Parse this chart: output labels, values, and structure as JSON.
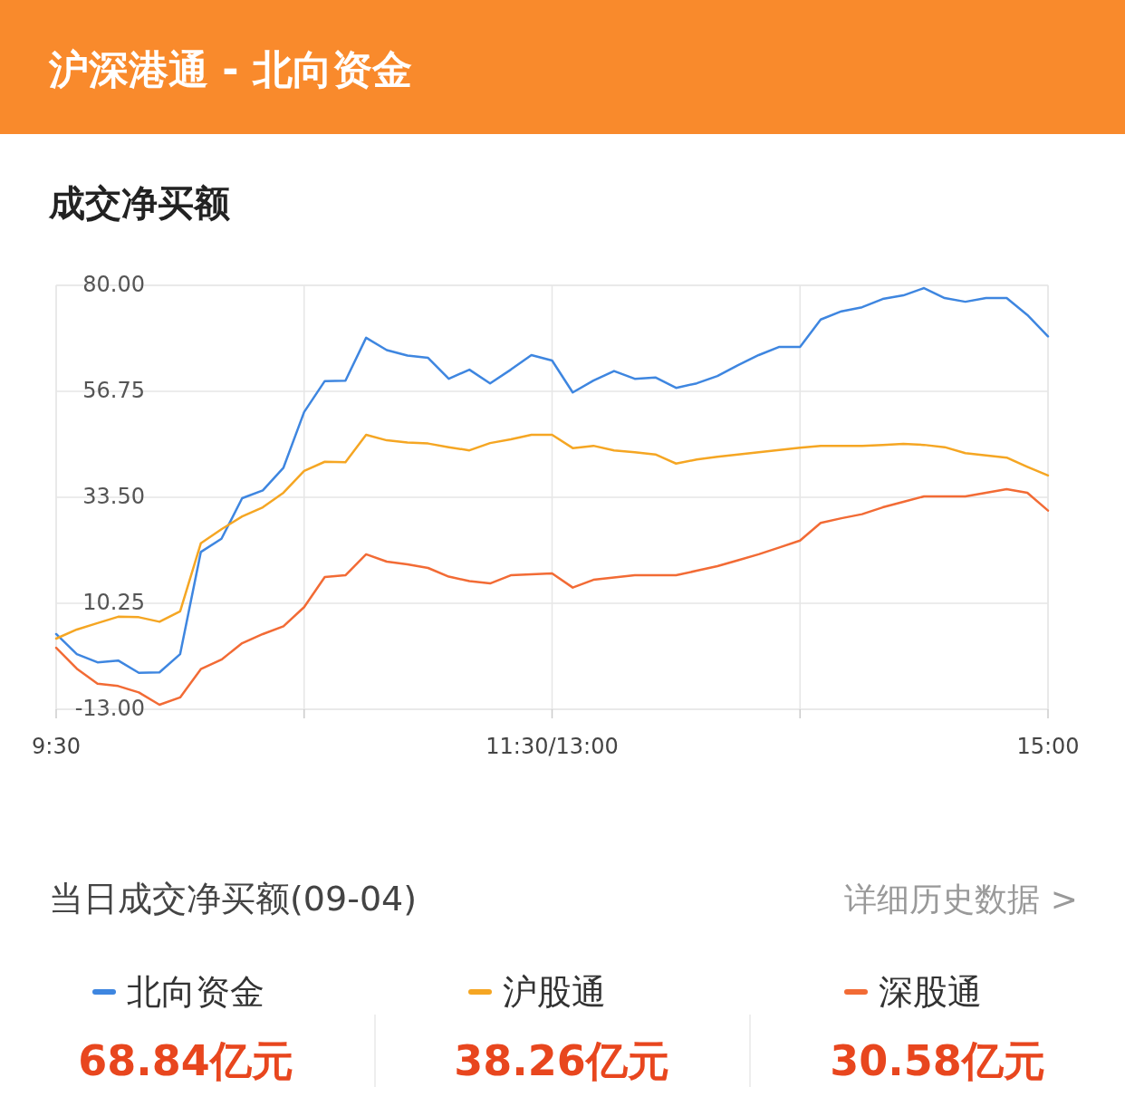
{
  "chart_data": {
    "type": "line",
    "title": "沪深港通 - 北向资金",
    "subtitle": "成交净买额",
    "categories": [
      "9:30",
      null,
      null,
      null,
      null,
      null,
      null,
      null,
      null,
      null,
      null,
      null,
      null,
      null,
      null,
      null,
      null,
      null,
      null,
      null,
      null,
      null,
      null,
      null,
      "11:30/13:00",
      null,
      null,
      null,
      null,
      null,
      null,
      null,
      null,
      null,
      null,
      null,
      null,
      null,
      null,
      null,
      null,
      null,
      null,
      null,
      null,
      null,
      null,
      null,
      "15:00"
    ],
    "ylim": [
      -13,
      80
    ],
    "yticks": [
      {
        "value": -13,
        "label": "-13.00"
      },
      {
        "value": 10.25,
        "label": "10.25"
      },
      {
        "value": 33.5,
        "label": "33.50"
      },
      {
        "value": 56.75,
        "label": "56.75"
      },
      {
        "value": 80,
        "label": "80.00"
      }
    ],
    "grid": true,
    "legend": "bottom",
    "line_style": "solid",
    "series": [
      {
        "name": "北向资金",
        "color": "#3e86e0",
        "values": [
          3.5,
          -0.9,
          -2.7,
          -2.3,
          -5,
          -4.9,
          -0.9,
          21.5,
          24.4,
          33.3,
          35,
          40,
          52.2,
          59,
          59.1,
          68.5,
          65.8,
          64.6,
          64.1,
          59.5,
          61.5,
          58.5,
          61.5,
          64.7,
          63.5,
          56.5,
          59.1,
          61.2,
          59.5,
          59.8,
          57.5,
          58.5,
          60.1,
          62.5,
          64.7,
          66.5,
          66.5,
          72.5,
          74.3,
          75.2,
          77.0,
          77.8,
          79.4,
          77.2,
          76.4,
          77.2,
          77.2,
          73.5,
          68.8
        ]
      },
      {
        "name": "沪股通",
        "color": "#f5a623",
        "values": [
          2.5,
          4.5,
          5.9,
          7.3,
          7.2,
          6.2,
          8.5,
          23.4,
          26.5,
          29.3,
          31.3,
          34.5,
          39.3,
          41.3,
          41.2,
          47.2,
          46,
          45.5,
          45.3,
          44.5,
          43.8,
          45.4,
          46.2,
          47.2,
          47.2,
          44.3,
          44.8,
          43.8,
          43.4,
          42.9,
          40.9,
          41.8,
          42.4,
          42.9,
          43.4,
          43.9,
          44.4,
          44.8,
          44.8,
          44.8,
          45,
          45.2,
          45,
          44.5,
          43.2,
          42.7,
          42.2,
          40.2,
          38.3
        ]
      },
      {
        "name": "深股通",
        "color": "#f26b35",
        "values": [
          0.5,
          -4.1,
          -7.4,
          -7.9,
          -9.3,
          -12.0,
          -10.4,
          -4.2,
          -2.1,
          1.5,
          3.5,
          5.2,
          9.4,
          16,
          16.4,
          21,
          19.4,
          18.8,
          18,
          16.1,
          15.1,
          14.6,
          16.4,
          16.6,
          16.8,
          13.7,
          15.4,
          15.9,
          16.4,
          16.4,
          16.4,
          17.4,
          18.4,
          19.7,
          21,
          22.5,
          24,
          27.9,
          28.9,
          29.8,
          31.3,
          32.5,
          33.7,
          33.7,
          33.7,
          34.5,
          35.3,
          34.5,
          30.6
        ]
      }
    ],
    "annotations": [
      "当日成交净买额(09-04)",
      "详细历史数据 >",
      "68.84亿元",
      "38.26亿元",
      "30.58亿元"
    ]
  }
}
